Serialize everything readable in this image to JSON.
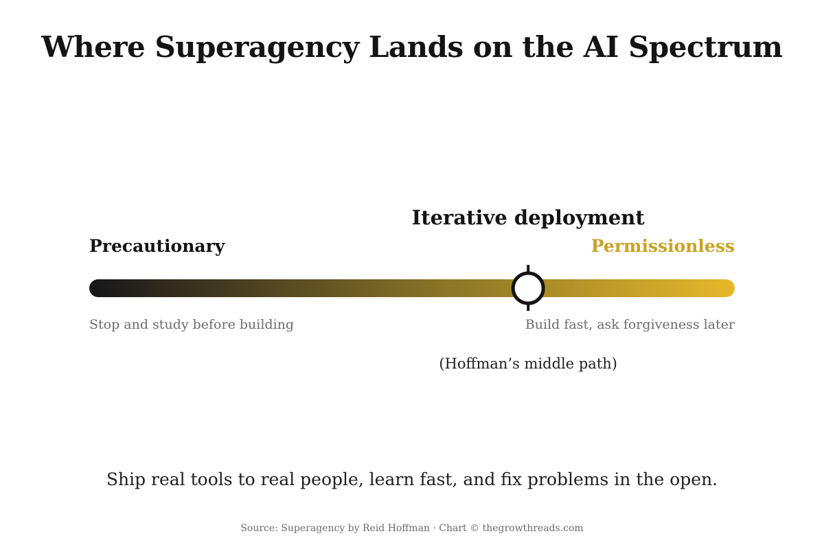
{
  "title": "Where Superagency Lands on the AI Spectrum",
  "spectrum": {
    "left_end": {
      "label": "Precautionary",
      "description": "Stop and study before building"
    },
    "right_end": {
      "label": "Permissionless",
      "description": "Build fast, ask forgiveness later"
    },
    "marker": {
      "label": "Iterative deployment",
      "note": "(Hoffman’s middle path)",
      "position": 0.68
    },
    "colors": {
      "start": "#16161a",
      "mid": "#8a7527",
      "end": "#e6b82a",
      "right_label": "#c9a227"
    }
  },
  "tagline": "Ship real tools to real people, learn fast, and fix problems in the open.",
  "source": "Source: Superagency by Reid Hoffman · Chart © thegrowthreads.com"
}
